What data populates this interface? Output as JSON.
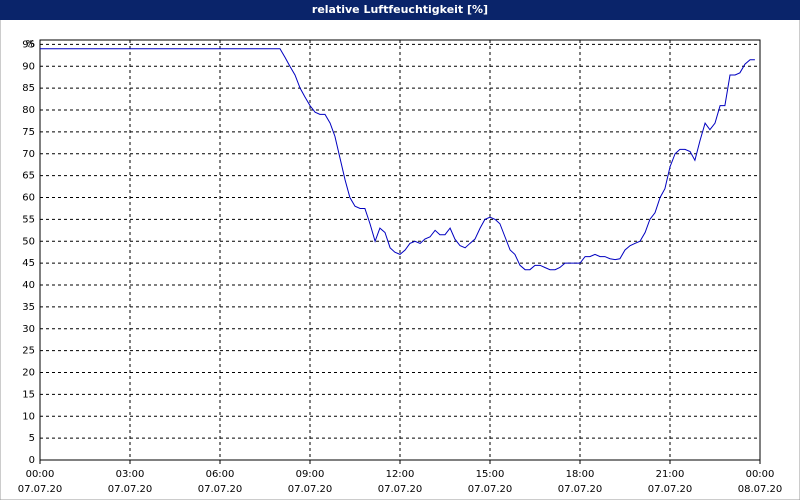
{
  "chart_data": {
    "type": "line",
    "title": "relative Luftfeuchtigkeit [%]",
    "y_label": "%",
    "xlim": [
      0,
      24
    ],
    "ylim": [
      0,
      96
    ],
    "yticks": [
      0,
      5,
      10,
      15,
      20,
      25,
      30,
      35,
      40,
      45,
      50,
      55,
      60,
      65,
      70,
      75,
      80,
      85,
      90,
      95
    ],
    "xticks": [
      {
        "value": 0,
        "label": "00:00"
      },
      {
        "value": 3,
        "label": "03:00"
      },
      {
        "value": 6,
        "label": "06:00"
      },
      {
        "value": 9,
        "label": "09:00"
      },
      {
        "value": 12,
        "label": "12:00"
      },
      {
        "value": 15,
        "label": "15:00"
      },
      {
        "value": 18,
        "label": "18:00"
      },
      {
        "value": 21,
        "label": "21:00"
      },
      {
        "value": 24,
        "label": "00:00"
      }
    ],
    "xtick_dates": [
      "07.07.20",
      "07.07.20",
      "07.07.20",
      "07.07.20",
      "07.07.20",
      "07.07.20",
      "07.07.20",
      "07.07.20",
      "08.07.20"
    ],
    "grid": true,
    "x": [
      0,
      8,
      8.17,
      8.33,
      8.5,
      8.67,
      8.83,
      9,
      9.17,
      9.33,
      9.5,
      9.67,
      9.83,
      10,
      10.17,
      10.33,
      10.5,
      10.67,
      10.83,
      11,
      11.17,
      11.33,
      11.5,
      11.67,
      11.83,
      12,
      12.17,
      12.33,
      12.5,
      12.67,
      12.83,
      13,
      13.17,
      13.33,
      13.5,
      13.67,
      13.83,
      14,
      14.17,
      14.33,
      14.5,
      14.67,
      14.83,
      15,
      15.17,
      15.33,
      15.5,
      15.67,
      15.83,
      16,
      16.17,
      16.33,
      16.5,
      16.67,
      16.83,
      17,
      17.17,
      17.33,
      17.5,
      17.67,
      17.83,
      18,
      18.17,
      18.33,
      18.5,
      18.67,
      18.83,
      19,
      19.17,
      19.33,
      19.5,
      19.67,
      19.83,
      20,
      20.17,
      20.33,
      20.5,
      20.67,
      20.83,
      21,
      21.17,
      21.33,
      21.5,
      21.67,
      21.83,
      22,
      22.17,
      22.33,
      22.5,
      22.67,
      22.83,
      23,
      23.17,
      23.33,
      23.5,
      23.67,
      23.83
    ],
    "series": [
      {
        "name": "relative Luftfeuchtigkeit",
        "color": "#0000c0",
        "values": [
          94,
          94,
          92,
          90,
          88,
          85,
          83,
          81,
          79.5,
          79,
          79,
          77,
          74,
          69,
          64,
          60,
          58,
          57.5,
          57.5,
          54,
          50,
          53,
          52,
          48.5,
          47.5,
          47,
          48,
          49.5,
          50,
          49.5,
          50.5,
          51,
          52.5,
          51.5,
          51.5,
          53,
          50.5,
          49,
          48.5,
          49.5,
          50.5,
          53,
          55,
          55.5,
          55,
          54,
          51,
          48,
          47,
          44.5,
          43.5,
          43.5,
          44.5,
          44.5,
          44,
          43.5,
          43.5,
          44,
          45,
          45,
          45,
          45,
          46.5,
          46.5,
          47,
          46.5,
          46.5,
          46,
          45.8,
          46,
          48,
          49,
          49.5,
          50,
          52,
          55,
          56.5,
          60,
          62,
          67,
          70,
          71,
          71,
          70.5,
          68.5,
          73,
          77,
          75.5,
          77,
          81,
          81,
          88,
          88,
          88.5,
          90.5,
          91.5,
          91.5
        ]
      }
    ]
  }
}
